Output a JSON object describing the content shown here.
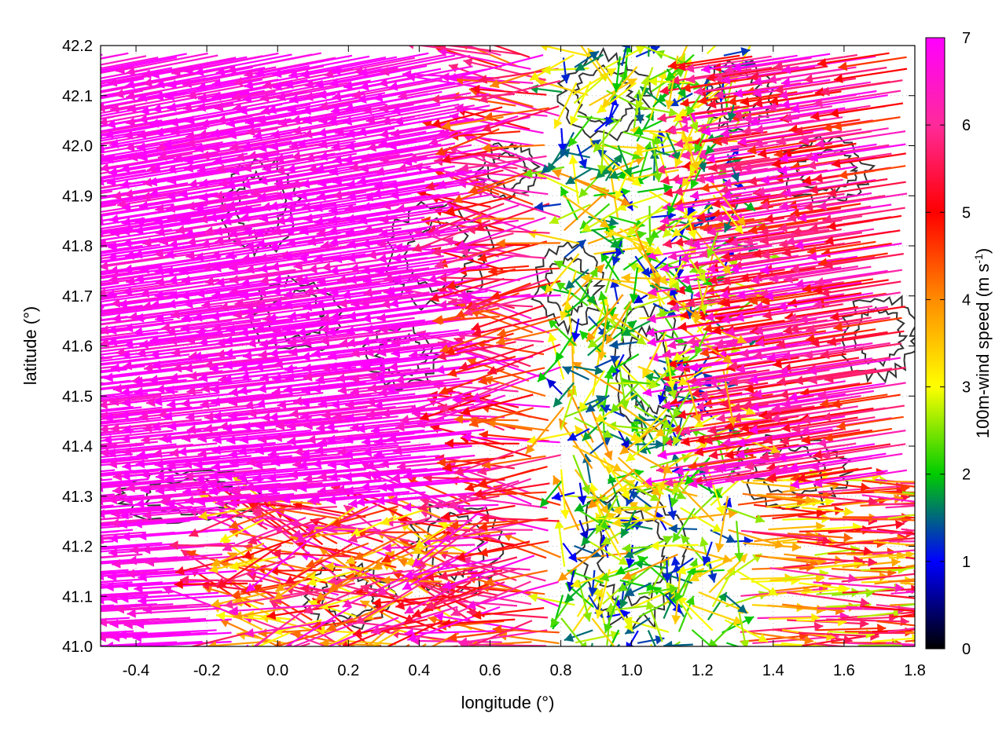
{
  "chart_data": {
    "type": "vector-field",
    "title": "",
    "xlabel": "longitude (°)",
    "ylabel": "latitude (°)",
    "xlim": [
      -0.5,
      1.8
    ],
    "ylim": [
      41.0,
      42.2
    ],
    "xticks": [
      -0.4,
      -0.2,
      0.0,
      0.2,
      0.4,
      0.6,
      0.8,
      1.0,
      1.2,
      1.4,
      1.6,
      1.8
    ],
    "yticks": [
      41.0,
      41.1,
      41.2,
      41.3,
      41.4,
      41.5,
      41.6,
      41.7,
      41.8,
      41.9,
      42.0,
      42.1,
      42.2
    ],
    "xtick_labels": [
      "-0.4",
      "-0.2",
      "0.0",
      "0.2",
      "0.4",
      "0.6",
      "0.8",
      "1.0",
      "1.2",
      "1.4",
      "1.6",
      "1.8"
    ],
    "ytick_labels": [
      "41.0",
      "41.1",
      "41.2",
      "41.3",
      "41.4",
      "41.5",
      "41.6",
      "41.7",
      "41.8",
      "41.9",
      "42.0",
      "42.1",
      "42.2"
    ],
    "grid": true,
    "colorbar": {
      "label_prefix": "100m-wind speed (m s",
      "label_sup": "-1",
      "label_suffix": ")",
      "range": [
        0,
        7
      ],
      "ticks": [
        0,
        1,
        2,
        3,
        4,
        5,
        6,
        7
      ],
      "tick_labels": [
        "0",
        "1",
        "2",
        "3",
        "4",
        "5",
        "6",
        "7"
      ],
      "palette": [
        "#000000",
        "#0000ff",
        "#00cc00",
        "#ffff00",
        "#ff8c00",
        "#ff0000",
        "#ff00ff"
      ]
    },
    "contour_color": "#333333",
    "vector_field_summary": {
      "west_region": {
        "lon_range": [
          -0.5,
          0.6
        ],
        "dominant_direction": "westward",
        "typical_speed": 7
      },
      "central_valley": {
        "lon_range": [
          0.8,
          1.3
        ],
        "dominant_direction": "variable",
        "typical_speed": 2
      },
      "east_region": {
        "lon_range": [
          1.3,
          1.8
        ],
        "dominant_direction": "westward north / eastward south",
        "typical_speed": 5.5
      }
    }
  }
}
